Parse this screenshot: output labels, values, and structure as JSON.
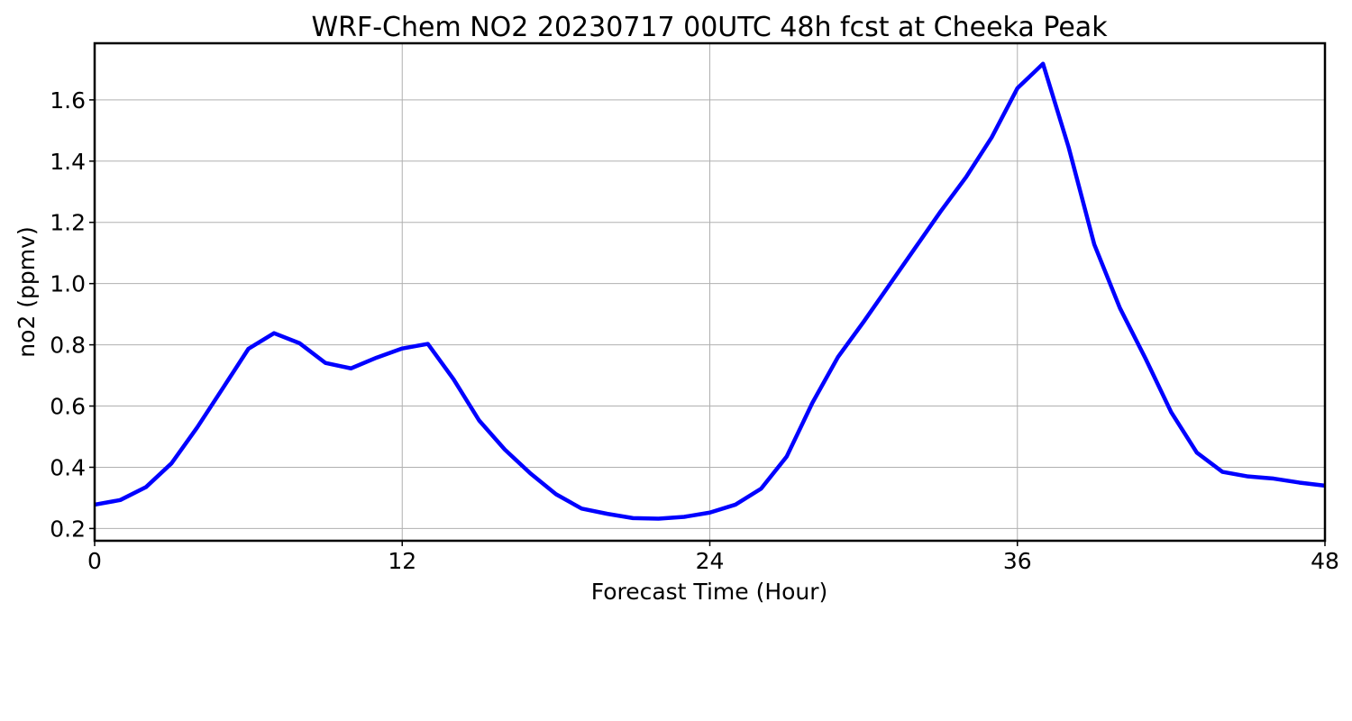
{
  "chart_data": {
    "type": "line",
    "title": "WRF-Chem NO2  20230717 00UTC 48h fcst at Cheeka Peak",
    "xlabel": "Forecast Time (Hour)",
    "ylabel": "no2  (ppmv)",
    "xlim": [
      0,
      48
    ],
    "ylim": [
      0.16,
      1.785
    ],
    "xticks": [
      0,
      12,
      24,
      36,
      48
    ],
    "xtick_labels": [
      "0",
      "12",
      "24",
      "36",
      "48"
    ],
    "yticks": [
      0.2,
      0.4,
      0.6,
      0.8,
      1.0,
      1.2,
      1.4,
      1.6
    ],
    "ytick_labels": [
      "0.2",
      "0.4",
      "0.6",
      "0.8",
      "1.0",
      "1.2",
      "1.4",
      "1.6"
    ],
    "grid": true,
    "legend": "none",
    "series": [
      {
        "color": "#0000ff",
        "x": [
          0,
          1,
          2,
          3,
          4,
          5,
          6,
          7,
          8,
          9,
          10,
          11,
          12,
          13,
          14,
          15,
          16,
          17,
          18,
          19,
          20,
          21,
          22,
          23,
          24,
          25,
          26,
          27,
          28,
          29,
          30,
          31,
          32,
          33,
          34,
          35,
          36,
          37,
          38,
          39,
          40,
          41,
          42,
          43,
          44,
          45,
          46,
          47,
          48
        ],
        "values": [
          0.278,
          0.293,
          0.335,
          0.413,
          0.53,
          0.658,
          0.787,
          0.838,
          0.805,
          0.741,
          0.723,
          0.758,
          0.788,
          0.803,
          0.688,
          0.553,
          0.458,
          0.38,
          0.312,
          0.265,
          0.248,
          0.234,
          0.232,
          0.238,
          0.252,
          0.278,
          0.33,
          0.435,
          0.61,
          0.76,
          0.875,
          0.995,
          1.115,
          1.235,
          1.348,
          1.478,
          1.638,
          1.718,
          1.445,
          1.128,
          0.92,
          0.755,
          0.58,
          0.448,
          0.385,
          0.37,
          0.363,
          0.35,
          0.34
        ]
      }
    ]
  }
}
